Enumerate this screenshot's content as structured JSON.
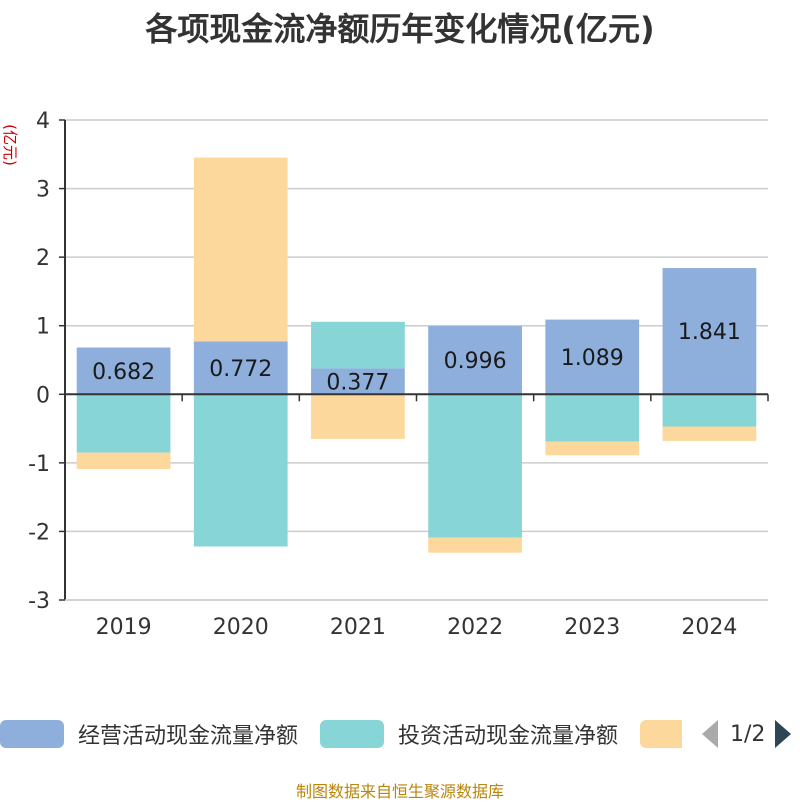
{
  "title": "各项现金流净额历年变化情况(亿元)",
  "source": "制图数据来自恒生聚源数据库",
  "colors": {
    "operating": "#8eaedb",
    "investing": "#88d5d8",
    "financing": "#fdd89c"
  },
  "legend": {
    "items": [
      {
        "label": "经营活动现金流量净额",
        "color": "#8eaedb"
      },
      {
        "label": "投资活动现金流量净额",
        "color": "#88d5d8"
      },
      {
        "label": "",
        "color": "#fdd89c"
      }
    ],
    "page": "1/2"
  },
  "chart_data": {
    "type": "bar",
    "stacked": true,
    "title": "各项现金流净额历年变化情况(亿元)",
    "ylabel": "(亿元)",
    "categories": [
      "2019",
      "2020",
      "2021",
      "2022",
      "2023",
      "2024"
    ],
    "ylim": [
      -3,
      4
    ],
    "yticks": [
      4,
      3,
      2,
      1,
      0,
      -1,
      -2,
      -3
    ],
    "grid": true,
    "legend_position": "bottom",
    "series": [
      {
        "name": "经营活动现金流量净额",
        "values": [
          0.682,
          0.772,
          0.377,
          0.996,
          1.089,
          1.841
        ]
      },
      {
        "name": "投资活动现金流量净额",
        "values": [
          -0.85,
          -2.22,
          0.68,
          -2.09,
          -0.69,
          -0.47
        ]
      },
      {
        "name": "",
        "values": [
          -0.24,
          2.68,
          -0.65,
          -0.22,
          -0.2,
          -0.21
        ]
      }
    ],
    "data_labels": [
      "0.682",
      "0.772",
      "0.377",
      "0.996",
      "1.089",
      "1.841"
    ]
  }
}
